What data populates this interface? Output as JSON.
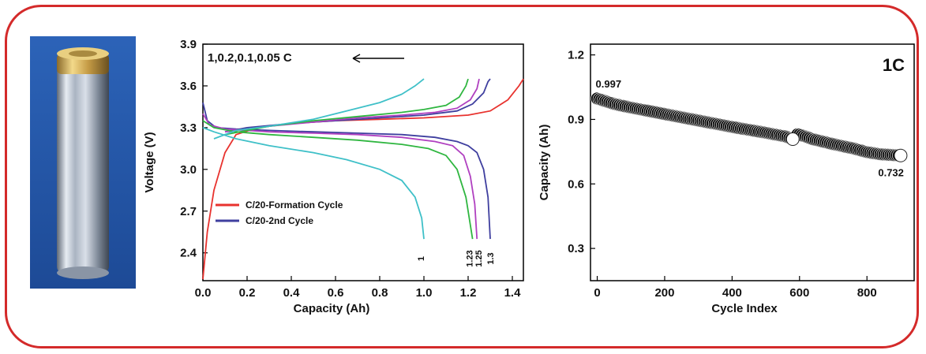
{
  "colors": {
    "frame": "#d42a2a",
    "red": "#e8322e",
    "blue": "#3f3f9f",
    "magenta": "#b040c0",
    "green": "#2fb640",
    "cyan": "#3fc0c8"
  },
  "photo": {
    "icon": "cylindrical-battery-cell-photo"
  },
  "chart_data": [
    {
      "type": "line",
      "title": "",
      "xlabel": "Capacity (Ah)",
      "ylabel": "Voltage (V)",
      "xlim": [
        0,
        1.45
      ],
      "ylim": [
        2.2,
        3.9
      ],
      "xticks": [
        "0.0",
        "0.2",
        "0.4",
        "0.6",
        "0.8",
        "1.0",
        "1.2",
        "1.4"
      ],
      "yticks": [
        "2.4",
        "2.7",
        "3.0",
        "3.3",
        "3.6",
        "3.9"
      ],
      "grid": false,
      "annotation_rates": "1,0.2,0.1,0.05 C",
      "arrow": "left",
      "legend": [
        {
          "label": "C/20-Formation Cycle",
          "color": "#e8322e"
        },
        {
          "label": "C/20-2nd Cycle",
          "color": "#3f3f9f"
        }
      ],
      "endpoint_labels": [
        "1",
        "1.23",
        "1.25",
        "1.3"
      ],
      "series": [
        {
          "color": "#e8322e",
          "charge": [
            [
              0,
              2.21
            ],
            [
              0.02,
              2.55
            ],
            [
              0.05,
              2.85
            ],
            [
              0.1,
              3.12
            ],
            [
              0.15,
              3.25
            ],
            [
              0.25,
              3.3
            ],
            [
              0.4,
              3.33
            ],
            [
              0.6,
              3.35
            ],
            [
              0.8,
              3.36
            ],
            [
              1.0,
              3.37
            ],
            [
              1.2,
              3.39
            ],
            [
              1.3,
              3.42
            ],
            [
              1.38,
              3.5
            ],
            [
              1.43,
              3.6
            ],
            [
              1.45,
              3.65
            ]
          ],
          "discharge": []
        },
        {
          "color": "#3f3f9f",
          "charge": [
            [
              0.1,
              3.27
            ],
            [
              0.2,
              3.3
            ],
            [
              0.4,
              3.33
            ],
            [
              0.6,
              3.35
            ],
            [
              0.8,
              3.37
            ],
            [
              1.0,
              3.39
            ],
            [
              1.15,
              3.42
            ],
            [
              1.22,
              3.47
            ],
            [
              1.27,
              3.55
            ],
            [
              1.29,
              3.63
            ],
            [
              1.3,
              3.65
            ]
          ],
          "discharge": [
            [
              0,
              3.48
            ],
            [
              0.02,
              3.35
            ],
            [
              0.06,
              3.3
            ],
            [
              0.15,
              3.29
            ],
            [
              0.3,
              3.28
            ],
            [
              0.5,
              3.27
            ],
            [
              0.7,
              3.26
            ],
            [
              0.9,
              3.25
            ],
            [
              1.05,
              3.23
            ],
            [
              1.15,
              3.2
            ],
            [
              1.2,
              3.17
            ],
            [
              1.24,
              3.12
            ],
            [
              1.27,
              3.0
            ],
            [
              1.29,
              2.8
            ],
            [
              1.3,
              2.5
            ]
          ]
        },
        {
          "color": "#b040c0",
          "charge": [
            [
              0.1,
              3.27
            ],
            [
              0.3,
              3.31
            ],
            [
              0.5,
              3.34
            ],
            [
              0.7,
              3.37
            ],
            [
              0.9,
              3.39
            ],
            [
              1.05,
              3.41
            ],
            [
              1.15,
              3.44
            ],
            [
              1.21,
              3.5
            ],
            [
              1.24,
              3.58
            ],
            [
              1.25,
              3.65
            ]
          ],
          "discharge": [
            [
              0,
              3.4
            ],
            [
              0.03,
              3.32
            ],
            [
              0.1,
              3.29
            ],
            [
              0.3,
              3.27
            ],
            [
              0.5,
              3.26
            ],
            [
              0.7,
              3.25
            ],
            [
              0.9,
              3.23
            ],
            [
              1.05,
              3.2
            ],
            [
              1.13,
              3.17
            ],
            [
              1.18,
              3.1
            ],
            [
              1.21,
              2.95
            ],
            [
              1.23,
              2.75
            ],
            [
              1.24,
              2.5
            ]
          ]
        },
        {
          "color": "#2fb640",
          "charge": [
            [
              0.1,
              3.25
            ],
            [
              0.3,
              3.31
            ],
            [
              0.5,
              3.35
            ],
            [
              0.7,
              3.38
            ],
            [
              0.9,
              3.41
            ],
            [
              1.0,
              3.43
            ],
            [
              1.1,
              3.46
            ],
            [
              1.16,
              3.52
            ],
            [
              1.19,
              3.6
            ],
            [
              1.2,
              3.65
            ]
          ],
          "discharge": [
            [
              0,
              3.35
            ],
            [
              0.05,
              3.3
            ],
            [
              0.15,
              3.27
            ],
            [
              0.3,
              3.25
            ],
            [
              0.5,
              3.23
            ],
            [
              0.7,
              3.21
            ],
            [
              0.9,
              3.18
            ],
            [
              1.02,
              3.15
            ],
            [
              1.1,
              3.1
            ],
            [
              1.15,
              3.0
            ],
            [
              1.19,
              2.8
            ],
            [
              1.21,
              2.6
            ],
            [
              1.22,
              2.5
            ]
          ]
        },
        {
          "color": "#3fc0c8",
          "charge": [
            [
              0.05,
              3.22
            ],
            [
              0.15,
              3.28
            ],
            [
              0.3,
              3.31
            ],
            [
              0.5,
              3.36
            ],
            [
              0.65,
              3.42
            ],
            [
              0.8,
              3.48
            ],
            [
              0.9,
              3.54
            ],
            [
              0.96,
              3.6
            ],
            [
              1.0,
              3.65
            ]
          ],
          "discharge": [
            [
              0,
              3.3
            ],
            [
              0.05,
              3.27
            ],
            [
              0.15,
              3.22
            ],
            [
              0.3,
              3.17
            ],
            [
              0.5,
              3.12
            ],
            [
              0.65,
              3.07
            ],
            [
              0.8,
              3.0
            ],
            [
              0.9,
              2.92
            ],
            [
              0.96,
              2.8
            ],
            [
              0.99,
              2.65
            ],
            [
              1.0,
              2.5
            ]
          ]
        }
      ]
    },
    {
      "type": "scatter",
      "title": "",
      "xlabel": "Cycle Index",
      "ylabel": "Capacity (Ah)",
      "xlim": [
        -20,
        940
      ],
      "ylim": [
        0.15,
        1.25
      ],
      "xticks": [
        "0",
        "200",
        "400",
        "600",
        "800"
      ],
      "yticks": [
        "0.3",
        "0.6",
        "0.9",
        "1.2"
      ],
      "grid": false,
      "rate_label": "1C",
      "start_label": "0.997",
      "end_label": "0.732",
      "trend": [
        [
          0,
          0.997
        ],
        [
          50,
          0.972
        ],
        [
          100,
          0.955
        ],
        [
          200,
          0.925
        ],
        [
          300,
          0.895
        ],
        [
          400,
          0.865
        ],
        [
          500,
          0.838
        ],
        [
          560,
          0.82
        ],
        [
          580,
          0.808
        ],
        [
          595,
          0.832
        ],
        [
          640,
          0.808
        ],
        [
          700,
          0.785
        ],
        [
          760,
          0.765
        ],
        [
          800,
          0.748
        ],
        [
          840,
          0.738
        ],
        [
          900,
          0.732
        ]
      ]
    }
  ]
}
